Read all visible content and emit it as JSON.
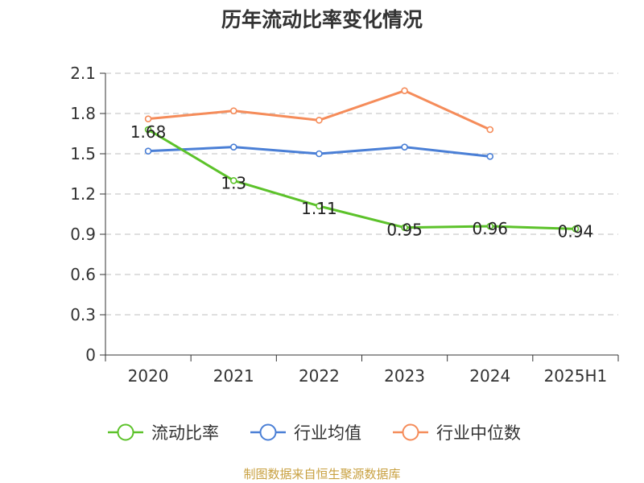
{
  "chart_data": {
    "type": "line",
    "title": "历年流动比率变化情况",
    "categories": [
      "2020",
      "2021",
      "2022",
      "2023",
      "2024",
      "2025H1"
    ],
    "ylim": [
      0,
      2.1
    ],
    "yticks": [
      "0",
      "0.3",
      "0.6",
      "0.9",
      "1.2",
      "1.5",
      "1.8",
      "2.1"
    ],
    "grid": true,
    "legend_position": "bottom",
    "series": [
      {
        "name": "流动比率",
        "color": "#5cc22a",
        "values": [
          1.68,
          1.3,
          1.11,
          0.95,
          0.96,
          0.94
        ],
        "labels": [
          "1.68",
          "1.3",
          "1.11",
          "0.95",
          "0.96",
          "0.94"
        ]
      },
      {
        "name": "行业均值",
        "color": "#4a7fd6",
        "values": [
          1.52,
          1.55,
          1.5,
          1.55,
          1.48,
          null
        ]
      },
      {
        "name": "行业中位数",
        "color": "#f58c5a",
        "values": [
          1.76,
          1.82,
          1.75,
          1.97,
          1.68,
          null
        ]
      }
    ],
    "source": "制图数据来自恒生聚源数据库"
  }
}
